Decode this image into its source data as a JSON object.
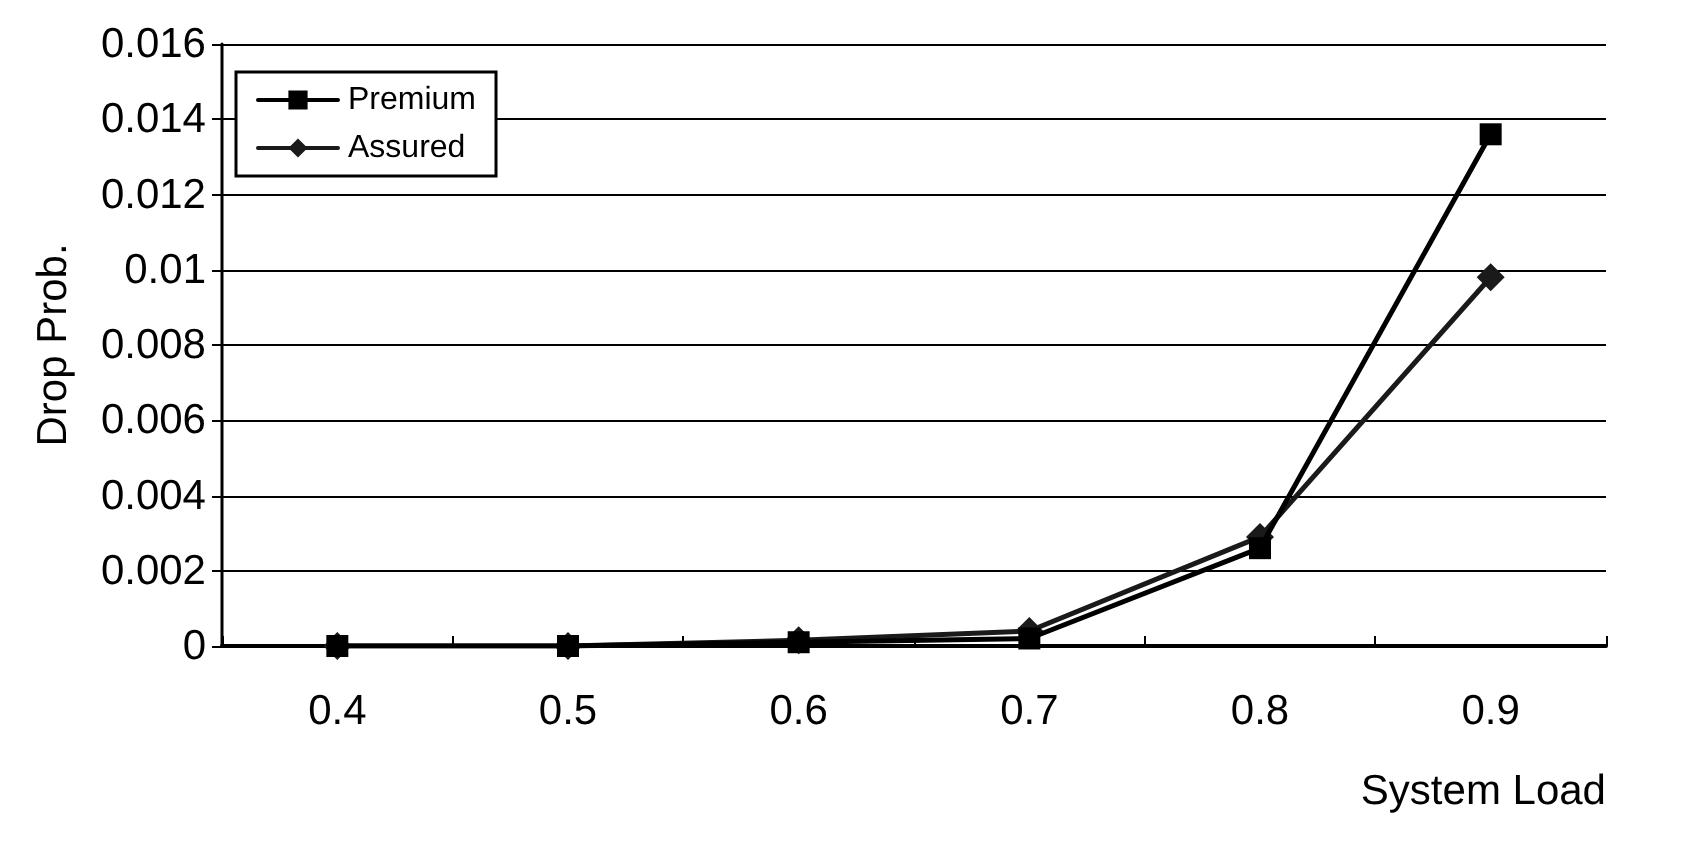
{
  "chart_data": {
    "type": "line",
    "xlabel": "System Load",
    "ylabel": "Drop Prob.",
    "categories": [
      "0.4",
      "0.5",
      "0.6",
      "0.7",
      "0.8",
      "0.9"
    ],
    "series": [
      {
        "name": "Premium",
        "color": "#000000",
        "marker": "square",
        "values": [
          0,
          0,
          0.0001,
          0.0002,
          0.0026,
          0.0136
        ]
      },
      {
        "name": "Assured",
        "color": "#1a1a1a",
        "marker": "diamond",
        "values": [
          0,
          0,
          0.00015,
          0.0004,
          0.0029,
          0.0098
        ]
      }
    ],
    "ylim": [
      0,
      0.016
    ],
    "yticks": [
      0,
      0.002,
      0.004,
      0.006,
      0.008,
      0.01,
      0.012,
      0.014,
      0.016
    ],
    "grid": "y",
    "legend": "top left",
    "line_style": "solid"
  }
}
